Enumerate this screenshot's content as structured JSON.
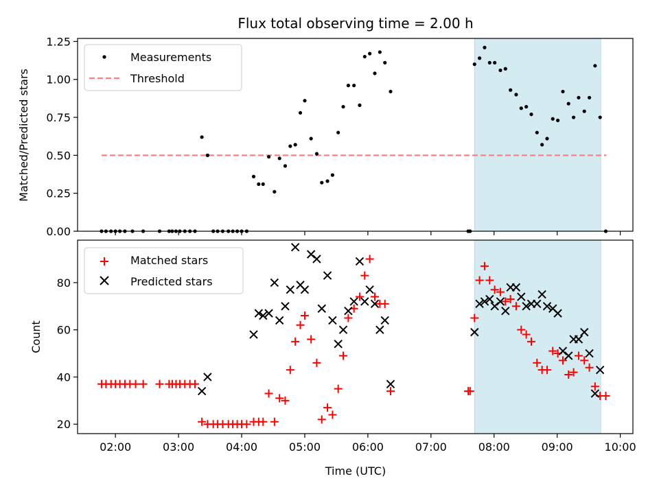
{
  "chart_data": {
    "type": "scatter",
    "title": "Flux total observing time = 2.00 h",
    "x_units": "hours (UTC)",
    "xlim": [
      1.4,
      10.2
    ],
    "xlabel": "Time (UTC)",
    "x_ticks": [
      {
        "value": 2,
        "label": "02:00"
      },
      {
        "value": 3,
        "label": "03:00"
      },
      {
        "value": 4,
        "label": "04:00"
      },
      {
        "value": 5,
        "label": "05:00"
      },
      {
        "value": 6,
        "label": "06:00"
      },
      {
        "value": 7,
        "label": "07:00"
      },
      {
        "value": 8,
        "label": "08:00"
      },
      {
        "value": 9,
        "label": "09:00"
      },
      {
        "value": 10,
        "label": "10:00"
      }
    ],
    "highlight": {
      "x_start": 7.69,
      "x_end": 9.69,
      "color": "#d4ebf1"
    },
    "colors": {
      "measurements": "#000000",
      "threshold": "#ff7f7f",
      "matched": "#ff0000",
      "predicted": "#000000"
    },
    "panels": [
      {
        "ylabel": "Matched/Predicted stars",
        "ylim": [
          0,
          1.27
        ],
        "y_ticks": [
          {
            "value": 0,
            "label": "0.00"
          },
          {
            "value": 0.25,
            "label": "0.25"
          },
          {
            "value": 0.5,
            "label": "0.50"
          },
          {
            "value": 0.75,
            "label": "0.75"
          },
          {
            "value": 1.0,
            "label": "1.00"
          },
          {
            "value": 1.25,
            "label": "1.25"
          }
        ],
        "legend": [
          {
            "label": "Measurements",
            "marker": "dot"
          },
          {
            "label": "Threshold",
            "marker": "dash"
          }
        ],
        "threshold": {
          "x": [
            1.78,
            9.78
          ],
          "y": 0.5
        },
        "measurements": [
          [
            1.78,
            0
          ],
          [
            1.85,
            0
          ],
          [
            1.93,
            0
          ],
          [
            2.0,
            0
          ],
          [
            2.07,
            0
          ],
          [
            2.15,
            0
          ],
          [
            2.27,
            0
          ],
          [
            2.44,
            0
          ],
          [
            2.7,
            0
          ],
          [
            2.85,
            0
          ],
          [
            2.9,
            0
          ],
          [
            2.96,
            0
          ],
          [
            3.02,
            0
          ],
          [
            3.1,
            0
          ],
          [
            3.18,
            0
          ],
          [
            3.26,
            0
          ],
          [
            3.37,
            0.62
          ],
          [
            3.46,
            0.5
          ],
          [
            3.55,
            0
          ],
          [
            3.62,
            0
          ],
          [
            3.7,
            0
          ],
          [
            3.79,
            0
          ],
          [
            3.86,
            0
          ],
          [
            3.93,
            0
          ],
          [
            4.0,
            0
          ],
          [
            4.08,
            0
          ],
          [
            4.19,
            0.36
          ],
          [
            4.27,
            0.31
          ],
          [
            4.34,
            0.31
          ],
          [
            4.43,
            0.49
          ],
          [
            4.52,
            0.26
          ],
          [
            4.6,
            0.48
          ],
          [
            4.69,
            0.43
          ],
          [
            4.77,
            0.56
          ],
          [
            4.85,
            0.57
          ],
          [
            4.93,
            0.78
          ],
          [
            5.0,
            0.86
          ],
          [
            5.1,
            0.61
          ],
          [
            5.19,
            0.51
          ],
          [
            5.27,
            0.32
          ],
          [
            5.36,
            0.33
          ],
          [
            5.44,
            0.37
          ],
          [
            5.53,
            0.65
          ],
          [
            5.61,
            0.82
          ],
          [
            5.69,
            0.96
          ],
          [
            5.78,
            0.96
          ],
          [
            5.87,
            0.83
          ],
          [
            5.95,
            1.15
          ],
          [
            6.03,
            1.17
          ],
          [
            6.11,
            1.04
          ],
          [
            6.19,
            1.18
          ],
          [
            6.27,
            1.11
          ],
          [
            6.36,
            0.92
          ],
          [
            7.59,
            0
          ],
          [
            7.62,
            0
          ],
          [
            7.69,
            1.1
          ],
          [
            7.77,
            1.14
          ],
          [
            7.85,
            1.21
          ],
          [
            7.93,
            1.11
          ],
          [
            8.01,
            1.11
          ],
          [
            8.1,
            1.06
          ],
          [
            8.18,
            1.07
          ],
          [
            8.26,
            0.93
          ],
          [
            8.35,
            0.9
          ],
          [
            8.43,
            0.81
          ],
          [
            8.51,
            0.82
          ],
          [
            8.59,
            0.77
          ],
          [
            8.68,
            0.65
          ],
          [
            8.76,
            0.57
          ],
          [
            8.84,
            0.61
          ],
          [
            8.93,
            0.74
          ],
          [
            9.01,
            0.73
          ],
          [
            9.09,
            0.92
          ],
          [
            9.18,
            0.84
          ],
          [
            9.26,
            0.75
          ],
          [
            9.34,
            0.88
          ],
          [
            9.43,
            0.79
          ],
          [
            9.51,
            0.88
          ],
          [
            9.6,
            1.09
          ],
          [
            9.68,
            0.75
          ],
          [
            9.77,
            0
          ]
        ]
      },
      {
        "ylabel": "Count",
        "ylim": [
          16,
          98
        ],
        "y_ticks": [
          {
            "value": 20,
            "label": "20"
          },
          {
            "value": 40,
            "label": "40"
          },
          {
            "value": 60,
            "label": "60"
          },
          {
            "value": 80,
            "label": "80"
          }
        ],
        "legend": [
          {
            "label": "Matched stars",
            "marker": "plus"
          },
          {
            "label": "Predicted stars",
            "marker": "x"
          }
        ],
        "matched": [
          [
            1.78,
            37
          ],
          [
            1.85,
            37
          ],
          [
            1.93,
            37
          ],
          [
            2.0,
            37
          ],
          [
            2.07,
            37
          ],
          [
            2.15,
            37
          ],
          [
            2.23,
            37
          ],
          [
            2.32,
            37
          ],
          [
            2.44,
            37
          ],
          [
            2.7,
            37
          ],
          [
            2.85,
            37
          ],
          [
            2.9,
            37
          ],
          [
            2.96,
            37
          ],
          [
            3.02,
            37
          ],
          [
            3.1,
            37
          ],
          [
            3.18,
            37
          ],
          [
            3.26,
            37
          ],
          [
            3.37,
            21
          ],
          [
            3.46,
            20
          ],
          [
            3.55,
            20
          ],
          [
            3.62,
            20
          ],
          [
            3.7,
            20
          ],
          [
            3.79,
            20
          ],
          [
            3.86,
            20
          ],
          [
            3.93,
            20
          ],
          [
            4.0,
            20
          ],
          [
            4.08,
            20
          ],
          [
            4.19,
            21
          ],
          [
            4.27,
            21
          ],
          [
            4.34,
            21
          ],
          [
            4.43,
            33
          ],
          [
            4.52,
            21
          ],
          [
            4.6,
            31
          ],
          [
            4.69,
            30
          ],
          [
            4.77,
            43
          ],
          [
            4.85,
            55
          ],
          [
            4.93,
            62
          ],
          [
            5.0,
            66
          ],
          [
            5.1,
            56
          ],
          [
            5.19,
            46
          ],
          [
            5.27,
            22
          ],
          [
            5.36,
            27
          ],
          [
            5.44,
            24
          ],
          [
            5.53,
            35
          ],
          [
            5.61,
            49
          ],
          [
            5.69,
            65
          ],
          [
            5.78,
            69
          ],
          [
            5.87,
            74
          ],
          [
            5.95,
            83
          ],
          [
            6.03,
            90
          ],
          [
            6.11,
            74
          ],
          [
            6.19,
            71
          ],
          [
            6.27,
            71
          ],
          [
            6.36,
            34
          ],
          [
            7.59,
            34
          ],
          [
            7.62,
            34
          ],
          [
            7.69,
            65
          ],
          [
            7.77,
            81
          ],
          [
            7.85,
            87
          ],
          [
            7.93,
            81
          ],
          [
            8.01,
            77
          ],
          [
            8.1,
            76
          ],
          [
            8.18,
            72
          ],
          [
            8.26,
            73
          ],
          [
            8.35,
            70
          ],
          [
            8.43,
            60
          ],
          [
            8.51,
            58
          ],
          [
            8.59,
            55
          ],
          [
            8.68,
            46
          ],
          [
            8.76,
            43
          ],
          [
            8.84,
            43
          ],
          [
            8.93,
            51
          ],
          [
            9.01,
            50
          ],
          [
            9.09,
            47
          ],
          [
            9.18,
            41
          ],
          [
            9.26,
            42
          ],
          [
            9.34,
            49
          ],
          [
            9.43,
            47
          ],
          [
            9.51,
            44
          ],
          [
            9.6,
            36
          ],
          [
            9.68,
            32
          ],
          [
            9.77,
            32
          ]
        ],
        "predicted": [
          [
            3.37,
            34
          ],
          [
            3.46,
            40
          ],
          [
            4.19,
            58
          ],
          [
            4.27,
            67
          ],
          [
            4.34,
            66
          ],
          [
            4.43,
            67
          ],
          [
            4.52,
            80
          ],
          [
            4.6,
            64
          ],
          [
            4.69,
            70
          ],
          [
            4.77,
            77
          ],
          [
            4.85,
            95
          ],
          [
            4.93,
            79
          ],
          [
            5.0,
            77
          ],
          [
            5.1,
            92
          ],
          [
            5.19,
            90
          ],
          [
            5.27,
            69
          ],
          [
            5.36,
            83
          ],
          [
            5.44,
            64
          ],
          [
            5.53,
            54
          ],
          [
            5.61,
            60
          ],
          [
            5.69,
            68
          ],
          [
            5.78,
            72
          ],
          [
            5.87,
            89
          ],
          [
            5.95,
            72
          ],
          [
            6.03,
            77
          ],
          [
            6.11,
            71
          ],
          [
            6.19,
            60
          ],
          [
            6.27,
            64
          ],
          [
            6.36,
            37
          ],
          [
            7.69,
            59
          ],
          [
            7.77,
            71
          ],
          [
            7.85,
            72
          ],
          [
            7.93,
            73
          ],
          [
            8.01,
            70
          ],
          [
            8.1,
            72
          ],
          [
            8.18,
            68
          ],
          [
            8.26,
            78
          ],
          [
            8.35,
            78
          ],
          [
            8.43,
            74
          ],
          [
            8.51,
            70
          ],
          [
            8.59,
            71
          ],
          [
            8.68,
            71
          ],
          [
            8.76,
            75
          ],
          [
            8.84,
            70
          ],
          [
            8.93,
            69
          ],
          [
            9.01,
            67
          ],
          [
            9.09,
            51
          ],
          [
            9.18,
            49
          ],
          [
            9.26,
            56
          ],
          [
            9.34,
            56
          ],
          [
            9.43,
            59
          ],
          [
            9.51,
            50
          ],
          [
            9.6,
            33
          ],
          [
            9.68,
            43
          ]
        ]
      }
    ]
  }
}
